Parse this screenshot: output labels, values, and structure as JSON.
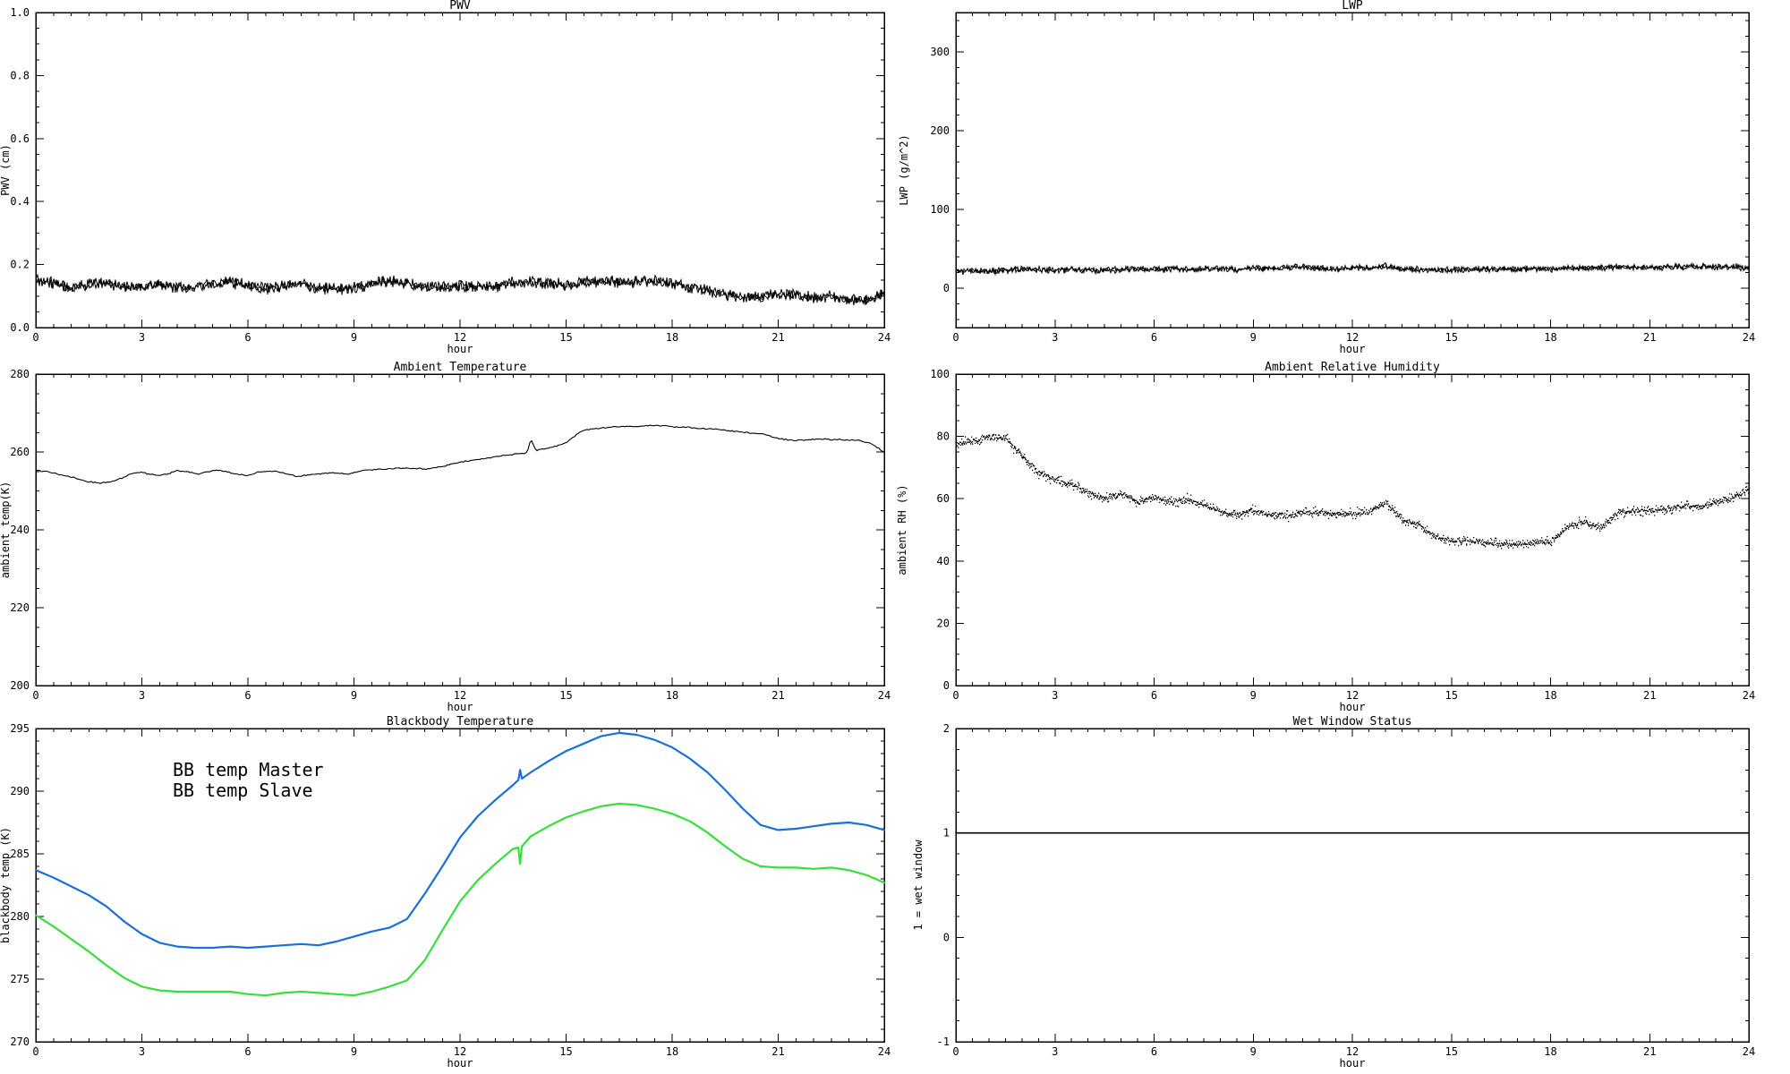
{
  "page": {
    "background": "#ffffff",
    "axis_color": "#000000",
    "accent_blue": "#1a6fd8",
    "accent_green": "#38df38"
  },
  "chart_data": [
    {
      "id": "pwv",
      "type": "scatter",
      "title": "PWV",
      "xlabel": "hour",
      "ylabel": "PWV (cm)",
      "x_range": [
        0,
        24
      ],
      "x_major_ticks": [
        0,
        3,
        6,
        9,
        12,
        15,
        18,
        21,
        24
      ],
      "x_tick_labels": [
        "0",
        "3",
        "6",
        "9",
        "12",
        "15",
        "18",
        "21",
        "24"
      ],
      "x_minor_step": 0.5,
      "y_range": [
        0.0,
        1.0
      ],
      "y_major_ticks": [
        0.0,
        0.2,
        0.4,
        0.6,
        0.8,
        1.0
      ],
      "y_tick_labels": [
        "0.0",
        "0.2",
        "0.4",
        "0.6",
        "0.8",
        "1.0"
      ],
      "y_minor_step": 0.05,
      "grid": false,
      "series": [
        {
          "name": "PWV",
          "color": "#000000",
          "marker": "band",
          "noise_halfwidth": 0.012,
          "x": [
            0,
            0.5,
            1,
            1.5,
            2,
            2.5,
            3,
            3.5,
            4,
            4.5,
            5,
            5.5,
            6,
            6.5,
            7,
            7.5,
            8,
            8.5,
            9,
            9.5,
            10,
            10.5,
            11,
            11.5,
            12,
            12.5,
            13,
            13.5,
            14,
            14.5,
            15,
            15.5,
            16,
            16.5,
            17,
            17.5,
            18,
            18.5,
            19,
            19.5,
            20,
            20.5,
            21,
            21.5,
            22,
            22.5,
            23,
            23.5,
            24
          ],
          "y": [
            0.15,
            0.14,
            0.128,
            0.135,
            0.142,
            0.13,
            0.128,
            0.138,
            0.125,
            0.132,
            0.14,
            0.145,
            0.132,
            0.125,
            0.13,
            0.138,
            0.128,
            0.12,
            0.125,
            0.14,
            0.148,
            0.14,
            0.13,
            0.128,
            0.135,
            0.13,
            0.128,
            0.145,
            0.148,
            0.14,
            0.135,
            0.142,
            0.148,
            0.145,
            0.145,
            0.148,
            0.14,
            0.13,
            0.118,
            0.105,
            0.095,
            0.1,
            0.11,
            0.105,
            0.095,
            0.1,
            0.09,
            0.085,
            0.11
          ]
        }
      ]
    },
    {
      "id": "lwp",
      "type": "scatter",
      "title": "LWP",
      "xlabel": "hour",
      "ylabel": "LWP (g/m^2)",
      "x_range": [
        0,
        24
      ],
      "x_major_ticks": [
        0,
        3,
        6,
        9,
        12,
        15,
        18,
        21,
        24
      ],
      "x_tick_labels": [
        "0",
        "3",
        "6",
        "9",
        "12",
        "15",
        "18",
        "21",
        "24"
      ],
      "x_minor_step": 0.5,
      "y_range": [
        -50,
        350
      ],
      "y_major_ticks": [
        0,
        100,
        200,
        300
      ],
      "y_tick_labels": [
        "0",
        "100",
        "200",
        "300"
      ],
      "y_minor_step": 20,
      "grid": false,
      "series": [
        {
          "name": "LWP",
          "color": "#000000",
          "marker": "band",
          "noise_halfwidth": 2.6,
          "x": [
            0,
            0.5,
            1,
            1.5,
            2,
            2.5,
            3,
            3.5,
            4,
            4.5,
            5,
            5.5,
            6,
            6.5,
            7,
            7.5,
            8,
            8.5,
            9,
            9.5,
            10,
            10.5,
            11,
            11.5,
            12,
            12.5,
            13,
            13.5,
            14,
            14.5,
            15,
            15.5,
            16,
            16.5,
            17,
            17.5,
            18,
            18.5,
            19,
            19.5,
            20,
            20.5,
            21,
            21.5,
            22,
            22.5,
            23,
            23.5,
            24
          ],
          "y": [
            21,
            22,
            21.5,
            23,
            24,
            23.5,
            23,
            23.5,
            23,
            22.5,
            24,
            24.5,
            23.5,
            25,
            24,
            24.5,
            25,
            24,
            25.5,
            25,
            26,
            27,
            25.5,
            25,
            26,
            25.5,
            28,
            24.5,
            24,
            23.5,
            23,
            24,
            24.5,
            24,
            24.5,
            25,
            24.5,
            25.5,
            25,
            26,
            26.5,
            26,
            27,
            26.5,
            27.5,
            28,
            27,
            27.5,
            25
          ]
        }
      ]
    },
    {
      "id": "ambient-temperature",
      "type": "line",
      "title": "Ambient Temperature",
      "xlabel": "hour",
      "ylabel": "ambient temp(K)",
      "x_range": [
        0,
        24
      ],
      "x_major_ticks": [
        0,
        3,
        6,
        9,
        12,
        15,
        18,
        21,
        24
      ],
      "x_tick_labels": [
        "0",
        "3",
        "6",
        "9",
        "12",
        "15",
        "18",
        "21",
        "24"
      ],
      "x_minor_step": 0.5,
      "y_range": [
        200,
        280
      ],
      "y_major_ticks": [
        200,
        220,
        240,
        260,
        280
      ],
      "y_tick_labels": [
        "200",
        "220",
        "240",
        "260",
        "280"
      ],
      "y_minor_step": 5,
      "grid": false,
      "series": [
        {
          "name": "ambient temperature",
          "color": "#000000",
          "marker": "noisy-line",
          "noise_halfwidth": 0.13,
          "x": [
            0,
            0.3,
            0.7,
            1.0,
            1.4,
            1.8,
            2.1,
            2.4,
            2.7,
            3.0,
            3.2,
            3.5,
            3.8,
            4.0,
            4.3,
            4.6,
            5.0,
            5.3,
            5.6,
            6.0,
            6.3,
            6.6,
            7.0,
            7.4,
            7.7,
            8.0,
            8.4,
            8.8,
            9.2,
            9.6,
            10.0,
            10.5,
            11.0,
            11.5,
            12.0,
            12.5,
            13.0,
            13.4,
            13.7,
            13.9,
            14.0,
            14.15,
            14.4,
            14.7,
            15.0,
            15.4,
            15.8,
            16.2,
            16.6,
            17.0,
            17.4,
            17.8,
            18.2,
            18.6,
            19.0,
            19.4,
            19.8,
            20.2,
            20.6,
            21.0,
            21.4,
            21.8,
            22.2,
            22.6,
            23.0,
            23.3,
            23.6,
            23.8,
            24.0
          ],
          "y": [
            255.3,
            255.0,
            254.2,
            253.6,
            252.5,
            252.0,
            252.3,
            253.2,
            254.4,
            254.8,
            254.3,
            254.0,
            254.6,
            255.2,
            254.9,
            254.2,
            255.3,
            255.1,
            254.4,
            253.9,
            254.8,
            255.2,
            254.6,
            253.7,
            254.1,
            254.4,
            254.7,
            254.3,
            255.2,
            255.5,
            255.7,
            255.9,
            255.6,
            256.3,
            257.4,
            258.1,
            258.8,
            259.3,
            259.6,
            259.8,
            263.5,
            260.3,
            260.8,
            261.5,
            262.3,
            265.2,
            266.0,
            266.3,
            266.6,
            266.5,
            266.9,
            266.7,
            266.4,
            266.2,
            266.0,
            265.7,
            265.3,
            264.9,
            264.5,
            263.4,
            263.0,
            263.1,
            263.3,
            263.2,
            263.1,
            262.9,
            262.2,
            261.2,
            259.9
          ]
        }
      ]
    },
    {
      "id": "ambient-relative-humidity",
      "type": "scatter",
      "title": "Ambient Relative Humidity",
      "xlabel": "hour",
      "ylabel": "ambient RH (%)",
      "x_range": [
        0,
        24
      ],
      "x_major_ticks": [
        0,
        3,
        6,
        9,
        12,
        15,
        18,
        21,
        24
      ],
      "x_tick_labels": [
        "0",
        "3",
        "6",
        "9",
        "12",
        "15",
        "18",
        "21",
        "24"
      ],
      "x_minor_step": 0.5,
      "y_range": [
        0,
        100
      ],
      "y_major_ticks": [
        0,
        20,
        40,
        60,
        80,
        100
      ],
      "y_tick_labels": [
        "0",
        "20",
        "40",
        "60",
        "80",
        "100"
      ],
      "y_minor_step": 5,
      "grid": false,
      "series": [
        {
          "name": "ambient RH",
          "color": "#000000",
          "marker": "dots",
          "noise_halfwidth": 0.8,
          "x": [
            0,
            0.5,
            1,
            1.5,
            2,
            2.5,
            3,
            3.5,
            4,
            4.5,
            5,
            5.5,
            6,
            6.5,
            7,
            7.5,
            8,
            8.5,
            9,
            9.5,
            10,
            10.5,
            11,
            11.5,
            12,
            12.5,
            13,
            13.5,
            14,
            14.5,
            15,
            15.5,
            16,
            16.5,
            17,
            17.5,
            18,
            18.5,
            19,
            19.5,
            20,
            20.5,
            21,
            21.5,
            22,
            22.5,
            23,
            23.5,
            24
          ],
          "y": [
            77.8,
            78.5,
            80.3,
            79.6,
            73.5,
            68.5,
            66.2,
            64.5,
            62.3,
            60.0,
            62.0,
            59.0,
            60.5,
            59.0,
            60.0,
            58.0,
            56.0,
            55.0,
            56.5,
            55.0,
            54.5,
            55.5,
            55.8,
            55.2,
            55.5,
            56.0,
            58.8,
            53.5,
            52.0,
            48.0,
            46.7,
            46.5,
            46.2,
            45.8,
            45.3,
            46.0,
            46.4,
            51.0,
            53.0,
            50.5,
            55.4,
            56.4,
            56.5,
            56.8,
            57.8,
            57.6,
            59.2,
            60.5,
            63.5
          ]
        }
      ]
    },
    {
      "id": "blackbody-temperature",
      "type": "line",
      "title": "Blackbody Temperature",
      "xlabel": "hour",
      "ylabel": "blackbody temp (K)",
      "x_range": [
        0,
        24
      ],
      "x_major_ticks": [
        0,
        3,
        6,
        9,
        12,
        15,
        18,
        21,
        24
      ],
      "x_tick_labels": [
        "0",
        "3",
        "6",
        "9",
        "12",
        "15",
        "18",
        "21",
        "24"
      ],
      "x_minor_step": 0.5,
      "y_range": [
        270,
        295
      ],
      "y_major_ticks": [
        270,
        275,
        280,
        285,
        290,
        295
      ],
      "y_tick_labels": [
        "270",
        "275",
        "280",
        "285",
        "290",
        "295"
      ],
      "y_minor_step": 1,
      "grid": false,
      "legend": {
        "position": "upper-left",
        "entries": [
          {
            "label": "BB temp Master",
            "color": "#1a6fd8"
          },
          {
            "label": "BB temp Slave",
            "color": "#38df38"
          }
        ]
      },
      "series": [
        {
          "name": "BB temp Master",
          "color": "#1a6fd8",
          "marker": "line",
          "noise_halfwidth": 0,
          "x": [
            0,
            0.5,
            1,
            1.5,
            2,
            2.5,
            3,
            3.5,
            4,
            4.5,
            5,
            5.5,
            6,
            6.5,
            7,
            7.5,
            8,
            8.5,
            9,
            9.5,
            10,
            10.5,
            11,
            11.5,
            12,
            12.5,
            13,
            13.5,
            13.65,
            13.7,
            13.75,
            14,
            14.5,
            15,
            15.5,
            16,
            16.5,
            17,
            17.5,
            18,
            18.5,
            19,
            19.5,
            20,
            20.5,
            21,
            21.5,
            22,
            22.5,
            23,
            23.5,
            24
          ],
          "y": [
            283.7,
            283.1,
            282.4,
            281.7,
            280.8,
            279.6,
            278.6,
            277.9,
            277.6,
            277.5,
            277.5,
            277.6,
            277.5,
            277.6,
            277.7,
            277.8,
            277.7,
            278.0,
            278.4,
            278.8,
            279.1,
            279.8,
            281.8,
            284.0,
            286.3,
            288.0,
            289.3,
            290.5,
            290.9,
            291.7,
            291.0,
            291.5,
            292.4,
            293.2,
            293.8,
            294.4,
            294.65,
            294.5,
            294.1,
            293.5,
            292.6,
            291.5,
            290.1,
            288.6,
            287.3,
            286.9,
            287.0,
            287.2,
            287.4,
            287.5,
            287.3,
            286.9
          ]
        },
        {
          "name": "BB temp Slave",
          "color": "#38df38",
          "marker": "line",
          "noise_halfwidth": 0,
          "x": [
            0,
            0.5,
            1,
            1.5,
            2,
            2.5,
            3,
            3.5,
            4,
            4.5,
            5,
            5.5,
            6,
            6.5,
            7,
            7.5,
            8,
            8.5,
            9,
            9.5,
            10,
            10.5,
            11,
            11.5,
            12,
            12.5,
            13,
            13.5,
            13.65,
            13.7,
            13.75,
            14,
            14.5,
            15,
            15.5,
            16,
            16.5,
            17,
            17.5,
            18,
            18.5,
            19,
            19.5,
            20,
            20.5,
            21,
            21.5,
            22,
            22.5,
            23,
            23.5,
            24
          ],
          "y": [
            280.1,
            279.2,
            278.2,
            277.2,
            276.1,
            275.1,
            274.4,
            274.1,
            274.0,
            274.0,
            274.0,
            274.0,
            273.8,
            273.7,
            273.9,
            274.0,
            273.9,
            273.8,
            273.7,
            274.0,
            274.4,
            274.9,
            276.5,
            278.9,
            281.2,
            282.9,
            284.2,
            285.4,
            285.5,
            284.2,
            285.6,
            286.4,
            287.2,
            287.9,
            288.4,
            288.8,
            289.0,
            288.9,
            288.6,
            288.2,
            287.6,
            286.7,
            285.6,
            284.6,
            284.0,
            283.9,
            283.9,
            283.8,
            283.9,
            283.7,
            283.3,
            282.7
          ]
        }
      ]
    },
    {
      "id": "wet-window-status",
      "type": "line",
      "title": "Wet Window Status",
      "xlabel": "hour",
      "ylabel": "1 = wet window",
      "x_range": [
        0,
        24
      ],
      "x_major_ticks": [
        0,
        3,
        6,
        9,
        12,
        15,
        18,
        21,
        24
      ],
      "x_tick_labels": [
        "0",
        "3",
        "6",
        "9",
        "12",
        "15",
        "18",
        "21",
        "24"
      ],
      "x_minor_step": 0.5,
      "y_range": [
        -1,
        2
      ],
      "y_major_ticks": [
        -1,
        0,
        1,
        2
      ],
      "y_tick_labels": [
        "-1",
        "0",
        "1",
        "2"
      ],
      "y_minor_step": 0.2,
      "grid": false,
      "series": [
        {
          "name": "wet window flag",
          "color": "#000000",
          "marker": "line",
          "width": 1.6,
          "noise_halfwidth": 0,
          "x": [
            0,
            24
          ],
          "y": [
            1,
            1
          ]
        }
      ]
    }
  ]
}
